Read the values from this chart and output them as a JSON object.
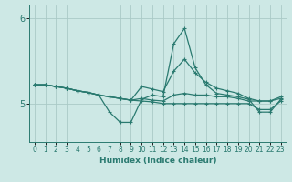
{
  "background_color": "#cde8e5",
  "line_color": "#2a7a70",
  "grid_color": "#aacac6",
  "xlabel": "Humidex (Indice chaleur)",
  "ylim": [
    4.55,
    6.15
  ],
  "xlim": [
    -0.5,
    23.5
  ],
  "yticks": [
    5,
    6
  ],
  "xticks": [
    0,
    1,
    2,
    3,
    4,
    5,
    6,
    7,
    8,
    9,
    10,
    11,
    12,
    13,
    14,
    15,
    16,
    17,
    18,
    19,
    20,
    21,
    22,
    23
  ],
  "lines": [
    {
      "x": [
        0,
        1,
        2,
        3,
        4,
        5,
        6,
        7,
        8,
        9,
        10,
        11,
        12,
        13,
        14,
        15,
        16,
        17,
        18,
        19,
        20,
        21,
        22,
        23
      ],
      "y": [
        5.22,
        5.22,
        5.2,
        5.18,
        5.15,
        5.13,
        5.1,
        4.9,
        4.78,
        4.78,
        5.05,
        5.1,
        5.08,
        5.7,
        5.88,
        5.42,
        5.22,
        5.12,
        5.1,
        5.08,
        5.05,
        4.9,
        4.9,
        5.05
      ]
    },
    {
      "x": [
        0,
        1,
        2,
        3,
        4,
        5,
        6,
        7,
        8,
        9,
        10,
        11,
        12,
        13,
        14,
        15,
        16,
        17,
        18,
        19,
        20,
        21,
        22,
        23
      ],
      "y": [
        5.22,
        5.22,
        5.2,
        5.18,
        5.15,
        5.13,
        5.1,
        5.08,
        5.06,
        5.04,
        5.2,
        5.17,
        5.14,
        5.38,
        5.52,
        5.36,
        5.25,
        5.18,
        5.15,
        5.12,
        5.06,
        5.03,
        5.03,
        5.08
      ]
    },
    {
      "x": [
        0,
        1,
        2,
        3,
        4,
        5,
        6,
        7,
        8,
        9,
        10,
        11,
        12,
        13,
        14,
        15,
        16,
        17,
        18,
        19,
        20,
        21,
        22,
        23
      ],
      "y": [
        5.22,
        5.22,
        5.2,
        5.18,
        5.15,
        5.13,
        5.1,
        5.08,
        5.06,
        5.04,
        5.06,
        5.04,
        5.03,
        5.1,
        5.12,
        5.1,
        5.1,
        5.08,
        5.08,
        5.06,
        5.03,
        5.03,
        5.03,
        5.06
      ]
    },
    {
      "x": [
        0,
        1,
        2,
        3,
        4,
        5,
        6,
        7,
        8,
        9,
        10,
        11,
        12,
        13,
        14,
        15,
        16,
        17,
        18,
        19,
        20,
        21,
        22,
        23
      ],
      "y": [
        5.22,
        5.22,
        5.2,
        5.18,
        5.15,
        5.13,
        5.1,
        5.08,
        5.06,
        5.04,
        5.03,
        5.02,
        5.0,
        5.0,
        5.0,
        5.0,
        5.0,
        5.0,
        5.0,
        5.0,
        5.0,
        4.93,
        4.93,
        5.03
      ]
    }
  ]
}
